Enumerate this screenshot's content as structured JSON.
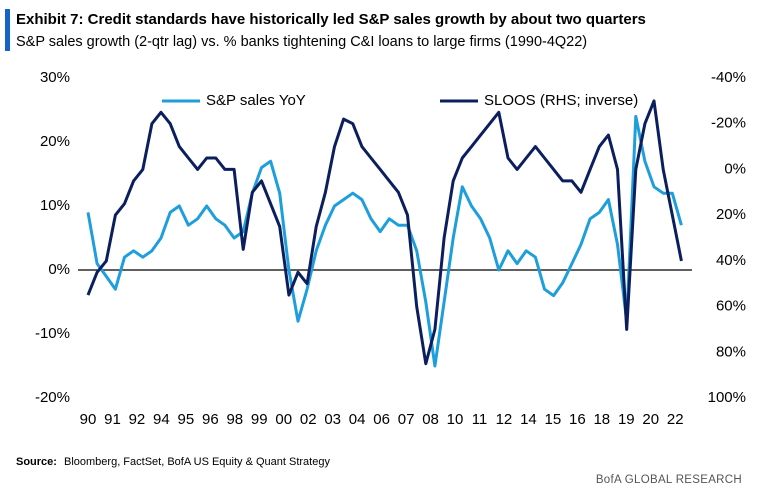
{
  "chart_data": {
    "type": "line",
    "title": "Exhibit 7: Credit standards have historically led S&P sales growth by about two quarters",
    "subtitle": "S&P sales growth (2-qtr lag) vs. % banks tightening C&I loans to large firms (1990-4Q22)",
    "source_label": "Source:",
    "source": "Bloomberg, FactSet, BofA US Equity & Quant Strategy",
    "footer": "BofA GLOBAL RESEARCH",
    "x": [
      1990,
      1990.5,
      1991,
      1991.5,
      1992,
      1992.5,
      1993,
      1993.5,
      1994,
      1994.5,
      1995,
      1995.5,
      1996,
      1996.5,
      1997,
      1997.5,
      1998,
      1998.5,
      1999,
      1999.5,
      2000,
      2000.5,
      2001,
      2001.5,
      2002,
      2002.5,
      2003,
      2003.5,
      2004,
      2004.5,
      2005,
      2005.5,
      2006,
      2006.5,
      2007,
      2007.5,
      2008,
      2008.5,
      2009,
      2009.5,
      2010,
      2010.5,
      2011,
      2011.5,
      2012,
      2012.5,
      2013,
      2013.5,
      2014,
      2014.5,
      2015,
      2015.5,
      2016,
      2016.5,
      2017,
      2017.5,
      2018,
      2018.5,
      2019,
      2019.5,
      2020,
      2020.5,
      2021,
      2021.5,
      2022,
      2022.5
    ],
    "series": [
      {
        "name": "S&P sales YoY",
        "color": "#1e9fdc",
        "axis": "y",
        "values": [
          9,
          1,
          -1,
          -3,
          2,
          3,
          2,
          3,
          5,
          9,
          10,
          7,
          8,
          10,
          8,
          7,
          5,
          6,
          12,
          16,
          17,
          12,
          0,
          -8,
          -3,
          3,
          7,
          10,
          11,
          12,
          11,
          8,
          6,
          8,
          7,
          7,
          3,
          -5,
          -15,
          -5,
          5,
          13,
          10,
          8,
          5,
          0,
          3,
          1,
          3,
          2,
          -3,
          -4,
          -2,
          1,
          4,
          8,
          9,
          11,
          4,
          -8,
          24,
          17,
          13,
          12,
          12,
          7
        ]
      },
      {
        "name": "SLOOS (RHS; inverse)",
        "color": "#0b1f5e",
        "axis": "y2",
        "values": [
          55,
          45,
          40,
          20,
          15,
          5,
          0,
          -20,
          -25,
          -20,
          -10,
          -5,
          0,
          -5,
          -5,
          0,
          0,
          35,
          10,
          5,
          15,
          25,
          55,
          45,
          50,
          25,
          10,
          -10,
          -22,
          -20,
          -10,
          -5,
          0,
          5,
          10,
          20,
          60,
          85,
          70,
          30,
          5,
          -5,
          -10,
          -15,
          -20,
          -25,
          -5,
          0,
          -5,
          -10,
          -5,
          0,
          5,
          5,
          10,
          0,
          -10,
          -15,
          0,
          70,
          0,
          -20,
          -30,
          0,
          20,
          40
        ]
      }
    ],
    "xlim": [
      1990,
      2022.75
    ],
    "xticks": [
      {
        "value": 1990,
        "label": "90"
      },
      {
        "value": 1991.34,
        "label": "91"
      },
      {
        "value": 1992.68,
        "label": "92"
      },
      {
        "value": 1994.02,
        "label": "94"
      },
      {
        "value": 1995.36,
        "label": "95"
      },
      {
        "value": 1996.7,
        "label": "96"
      },
      {
        "value": 1998.04,
        "label": "98"
      },
      {
        "value": 1999.38,
        "label": "99"
      },
      {
        "value": 2000.72,
        "label": "00"
      },
      {
        "value": 2002.06,
        "label": "02"
      },
      {
        "value": 2003.4,
        "label": "03"
      },
      {
        "value": 2004.74,
        "label": "04"
      },
      {
        "value": 2006.08,
        "label": "06"
      },
      {
        "value": 2007.42,
        "label": "07"
      },
      {
        "value": 2008.76,
        "label": "08"
      },
      {
        "value": 2010.1,
        "label": "10"
      },
      {
        "value": 2011.44,
        "label": "11"
      },
      {
        "value": 2012.78,
        "label": "12"
      },
      {
        "value": 2014.12,
        "label": "14"
      },
      {
        "value": 2015.46,
        "label": "15"
      },
      {
        "value": 2016.8,
        "label": "16"
      },
      {
        "value": 2018.14,
        "label": "18"
      },
      {
        "value": 2019.48,
        "label": "19"
      },
      {
        "value": 2020.82,
        "label": "20"
      },
      {
        "value": 2022.16,
        "label": "22"
      }
    ],
    "ylim": [
      -20,
      30
    ],
    "yticks": [
      {
        "value": -20,
        "label": "-20%"
      },
      {
        "value": -10,
        "label": "-10%"
      },
      {
        "value": 0,
        "label": "0%"
      },
      {
        "value": 10,
        "label": "10%"
      },
      {
        "value": 20,
        "label": "20%"
      },
      {
        "value": 30,
        "label": "30%"
      }
    ],
    "y2lim": [
      -40,
      100
    ],
    "y2_inverted": true,
    "y2ticks": [
      {
        "value": -40,
        "label": "-40%"
      },
      {
        "value": -20,
        "label": "-20%"
      },
      {
        "value": 0,
        "label": "0%"
      },
      {
        "value": 20,
        "label": "20%"
      },
      {
        "value": 40,
        "label": "40%"
      },
      {
        "value": 60,
        "label": "60%"
      },
      {
        "value": 80,
        "label": "80%"
      },
      {
        "value": 100,
        "label": "100%"
      }
    ],
    "zero_line": true,
    "grid": false
  }
}
